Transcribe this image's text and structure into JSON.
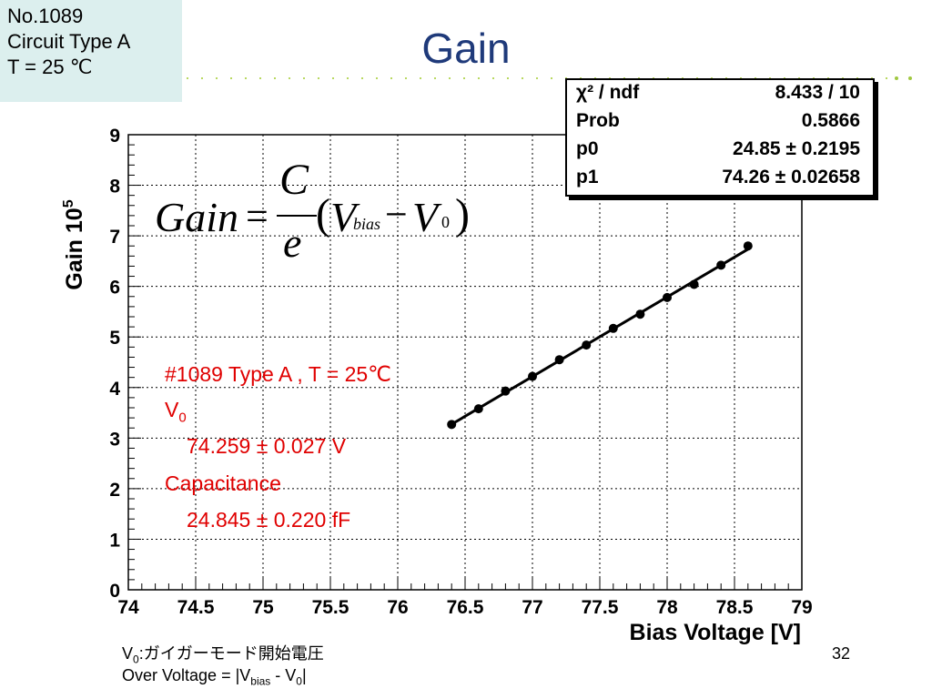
{
  "slide": {
    "title": "Gain",
    "label_lines": [
      "No.1089",
      "Circuit Type A",
      "T = 25 ℃"
    ],
    "page_number": "32",
    "bottom_line1_prefix": "V",
    "bottom_line1_sub": "0",
    "bottom_line1_rest": ":ガイガーモード開始電圧",
    "bottom_line2_a": "Over Voltage = |V",
    "bottom_line2_sub1": "bias",
    "bottom_line2_b": " - V",
    "bottom_line2_sub2": "0",
    "bottom_line2_c": "|"
  },
  "stats_box": {
    "rows": [
      {
        "key": "χ² / ndf",
        "value": "8.433 / 10"
      },
      {
        "key": "Prob",
        "value": "0.5866"
      },
      {
        "key": "p0",
        "value": "24.85 ± 0.2195"
      },
      {
        "key": "p1",
        "value": "74.26 ± 0.02658"
      }
    ]
  },
  "formula": {
    "lhs": "Gain",
    "eq": "=",
    "numerator": "C",
    "denominator": "e",
    "open": "(",
    "v": "V",
    "sub_bias": "bias",
    "minus": "−",
    "v0": "V",
    "sub0": "0",
    "close": ")"
  },
  "annotation": {
    "line1": "#1089  Type A , T = 25℃",
    "line2_v": "V",
    "line2_sub": "0",
    "line3": "74.259 ± 0.027 V",
    "line4": "Capacitance",
    "line5": "24.845 ± 0.220 fF"
  },
  "chart_data": {
    "type": "scatter",
    "title": "",
    "xlabel": "Bias Voltage [V]",
    "ylabel": "Gain 10",
    "ylabel_exp": "5",
    "xlim": [
      74,
      79
    ],
    "ylim": [
      0,
      9
    ],
    "xticks": [
      "74",
      "74.5",
      "75",
      "75.5",
      "76",
      "76.5",
      "77",
      "77.5",
      "78",
      "78.5",
      "79"
    ],
    "yticks": [
      "0",
      "1",
      "2",
      "3",
      "4",
      "5",
      "6",
      "7",
      "8",
      "9"
    ],
    "grid": true,
    "x": [
      76.4,
      76.6,
      76.8,
      77.0,
      77.2,
      77.4,
      77.6,
      77.8,
      78.0,
      78.2,
      78.4,
      78.6
    ],
    "y": [
      3.27,
      3.58,
      3.93,
      4.22,
      4.55,
      4.84,
      5.17,
      5.45,
      5.78,
      6.04,
      6.42,
      6.8
    ],
    "fit": {
      "p0": 24.85,
      "p1": 74.26,
      "x_range": [
        76.4,
        78.6
      ]
    },
    "colors": {
      "points": "#000000",
      "fit": "#000000",
      "annotation": "#e00000",
      "title": "#1f3a7a"
    }
  }
}
